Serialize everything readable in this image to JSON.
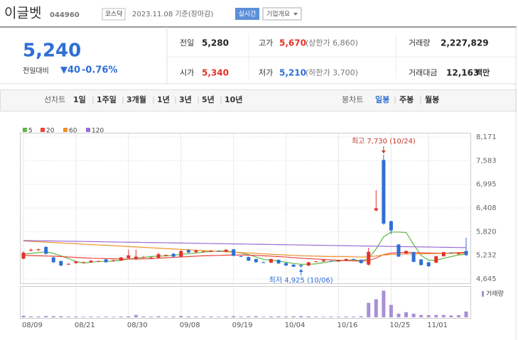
{
  "header": {
    "name": "이글벳",
    "code": "044960",
    "market": "코스닥",
    "date": "2023.11.08 기준(장마감)",
    "realtime": "실시간",
    "company": "기업개요"
  },
  "quote": {
    "price": "5,240",
    "change_label": "전일대비",
    "change": "▼40",
    "change_pct": "-0.76%",
    "table": [
      [
        {
          "label": "전일",
          "value": "5,280"
        },
        {
          "label": "고가",
          "value": "5,670",
          "note": "(상한가 6,860)"
        },
        {
          "label": "거래량",
          "value": "2,227,829"
        }
      ],
      [
        {
          "label": "시가",
          "value": "5,340"
        },
        {
          "label": "저가",
          "value": "5,210",
          "note": "(하한가 3,700)"
        },
        {
          "label": "거래대금",
          "value": "12,163",
          "unit": "백만"
        }
      ]
    ]
  },
  "tabs": {
    "line": {
      "label": "선차트",
      "items": [
        "1일",
        "1주일",
        "3개월",
        "1년",
        "3년",
        "5년",
        "10년"
      ]
    },
    "candle": {
      "label": "봉차트",
      "items": [
        "일봉",
        "주봉",
        "월봉"
      ],
      "active": 0
    }
  },
  "chart_data": {
    "type": "candlestick",
    "categories": [
      "08/09",
      null,
      null,
      null,
      null,
      null,
      null,
      "08/21",
      null,
      null,
      null,
      null,
      null,
      null,
      "08/30",
      null,
      null,
      null,
      null,
      null,
      null,
      "09/08",
      null,
      null,
      null,
      null,
      null,
      null,
      "09/19",
      null,
      null,
      null,
      null,
      null,
      null,
      "10/04",
      null,
      null,
      null,
      null,
      null,
      null,
      "10/16",
      null,
      null,
      null,
      null,
      null,
      null,
      "10/25",
      null,
      null,
      null,
      null,
      "11/01",
      null,
      null,
      null,
      null,
      null
    ],
    "open": [
      5150,
      5350,
      5360,
      5440,
      5180,
      5090,
      5010,
      5040,
      5050,
      5060,
      5080,
      5130,
      5100,
      5100,
      5160,
      5150,
      5180,
      5170,
      5170,
      5220,
      5270,
      5200,
      5360,
      5310,
      5320,
      5320,
      5340,
      5320,
      5380,
      5210,
      5190,
      5140,
      5060,
      5050,
      5120,
      5040,
      5000,
      4990,
      4980,
      5070,
      5080,
      5090,
      5080,
      5100,
      5140,
      5120,
      5000,
      6350,
      7600,
      6080,
      5500,
      5280,
      5310,
      5130,
      5060,
      5050,
      5210,
      5300,
      5260,
      5340
    ],
    "high": [
      5330,
      5400,
      5400,
      5460,
      5200,
      5100,
      5040,
      5090,
      5080,
      5110,
      5100,
      5140,
      5120,
      5190,
      5370,
      5370,
      5210,
      5200,
      5300,
      5250,
      5290,
      5360,
      5380,
      5370,
      5350,
      5360,
      5350,
      5390,
      5390,
      5230,
      5200,
      5150,
      5080,
      5150,
      5130,
      5050,
      5010,
      5000,
      5070,
      5090,
      5120,
      5100,
      5120,
      5150,
      5150,
      5130,
      5420,
      6850,
      7730,
      6090,
      5510,
      5350,
      5320,
      5140,
      5070,
      5220,
      5320,
      5310,
      5290,
      5670
    ],
    "low": [
      5130,
      5330,
      5340,
      5250,
      5040,
      4960,
      4990,
      5020,
      5040,
      5050,
      5060,
      5050,
      5080,
      5090,
      5140,
      5110,
      5170,
      5160,
      5160,
      5200,
      5190,
      5190,
      5290,
      5300,
      5310,
      5310,
      5320,
      5310,
      5210,
      5190,
      5090,
      5050,
      5040,
      5040,
      5020,
      4970,
      4940,
      4925,
      4960,
      5060,
      5070,
      5070,
      5070,
      5090,
      5120,
      5030,
      4980,
      6320,
      5990,
      5760,
      5190,
      5260,
      5060,
      4980,
      4950,
      5040,
      5200,
      5280,
      5250,
      5210
    ],
    "close": [
      5300,
      5370,
      5380,
      5270,
      5060,
      4980,
      5020,
      5080,
      5060,
      5100,
      5090,
      5060,
      5110,
      5180,
      5230,
      5200,
      5190,
      5180,
      5260,
      5240,
      5200,
      5340,
      5300,
      5350,
      5330,
      5350,
      5330,
      5370,
      5220,
      5200,
      5100,
      5060,
      5050,
      5140,
      5030,
      4980,
      4950,
      4960,
      5060,
      5080,
      5110,
      5080,
      5110,
      5140,
      5130,
      5040,
      5320,
      6400,
      6020,
      5850,
      5200,
      5340,
      5070,
      4990,
      4960,
      5210,
      5310,
      5290,
      5280,
      5240
    ],
    "up_color": "#e4312b",
    "down_color": "#2f6fd6",
    "moving_averages": [
      {
        "name": "5",
        "color": "#62b544",
        "values": [
          5260,
          5280,
          5300,
          5320,
          5280,
          5220,
          5150,
          5080,
          5040,
          5060,
          5080,
          5080,
          5090,
          5110,
          5140,
          5160,
          5180,
          5200,
          5210,
          5220,
          5230,
          5260,
          5270,
          5290,
          5310,
          5330,
          5340,
          5340,
          5320,
          5290,
          5250,
          5190,
          5130,
          5110,
          5090,
          5060,
          5030,
          5010,
          5010,
          5020,
          5050,
          5080,
          5090,
          5110,
          5120,
          5100,
          5150,
          5390,
          5690,
          5810,
          5810,
          5800,
          5500,
          5230,
          5110,
          5110,
          5160,
          5200,
          5240,
          5270
        ]
      },
      {
        "name": "20",
        "color": "#e8453c",
        "values": [
          5230,
          5225,
          5220,
          5215,
          5210,
          5200,
          5190,
          5180,
          5170,
          5160,
          5155,
          5150,
          5145,
          5140,
          5140,
          5140,
          5145,
          5150,
          5160,
          5170,
          5180,
          5190,
          5200,
          5210,
          5220,
          5225,
          5230,
          5235,
          5240,
          5240,
          5235,
          5230,
          5220,
          5210,
          5200,
          5190,
          5175,
          5160,
          5150,
          5140,
          5130,
          5120,
          5110,
          5100,
          5095,
          5090,
          5100,
          5165,
          5250,
          5290,
          5300,
          5305,
          5300,
          5295,
          5290,
          5285,
          5280,
          5290,
          5300,
          5310
        ]
      },
      {
        "name": "60",
        "color": "#f0912a",
        "values": [
          5590,
          5580,
          5570,
          5560,
          5550,
          5540,
          5530,
          5520,
          5510,
          5500,
          5490,
          5480,
          5470,
          5460,
          5450,
          5440,
          5430,
          5420,
          5410,
          5400,
          5390,
          5380,
          5370,
          5360,
          5350,
          5340,
          5330,
          5320,
          5310,
          5300,
          5290,
          5280,
          5270,
          5260,
          5250,
          5240,
          5230,
          5220,
          5215,
          5210,
          5205,
          5200,
          5200,
          5200,
          5195,
          5190,
          5195,
          5215,
          5240,
          5255,
          5260,
          5265,
          5268,
          5270,
          5272,
          5275,
          5278,
          5280,
          5283,
          5286
        ]
      },
      {
        "name": "120",
        "color": "#9b6cd6",
        "values": [
          5600,
          5597,
          5594,
          5591,
          5588,
          5585,
          5582,
          5579,
          5576,
          5573,
          5570,
          5567,
          5564,
          5561,
          5558,
          5555,
          5552,
          5549,
          5546,
          5543,
          5540,
          5537,
          5534,
          5531,
          5528,
          5525,
          5522,
          5519,
          5516,
          5513,
          5510,
          5507,
          5504,
          5501,
          5498,
          5495,
          5492,
          5489,
          5486,
          5483,
          5480,
          5477,
          5474,
          5471,
          5468,
          5465,
          5462,
          5459,
          5456,
          5453,
          5450,
          5447,
          5444,
          5441,
          5438,
          5435,
          5432,
          5429,
          5426,
          5423
        ]
      }
    ],
    "volume": {
      "name": "거래량",
      "color": "#a98fd6",
      "ylim": [
        0,
        11000000
      ],
      "values": [
        600000,
        350000,
        300000,
        500000,
        450000,
        400000,
        250000,
        300000,
        200000,
        250000,
        200000,
        250000,
        200000,
        300000,
        350000,
        900000,
        300000,
        250000,
        400000,
        250000,
        300000,
        500000,
        350000,
        300000,
        250000,
        300000,
        200000,
        300000,
        450000,
        250000,
        350000,
        400000,
        200000,
        300000,
        350000,
        300000,
        400000,
        450000,
        350000,
        250000,
        200000,
        250000,
        200000,
        300000,
        250000,
        400000,
        5600000,
        7000000,
        10300000,
        4800000,
        1400000,
        2000000,
        1400000,
        900000,
        800000,
        900000,
        900000,
        700000,
        800000,
        2227829
      ]
    },
    "ylim": [
      4645,
      8171
    ],
    "yticks": [
      {
        "value": 4645,
        "label": "4,645"
      },
      {
        "value": 5232,
        "label": "5,232"
      },
      {
        "value": 5820,
        "label": "5,820"
      },
      {
        "value": 6408,
        "label": "6,408"
      },
      {
        "value": 6995,
        "label": "6,995"
      },
      {
        "value": 7583,
        "label": "7,583"
      },
      {
        "value": 8171,
        "label": "8,171"
      }
    ],
    "high_label": "최고 7,730 (10/24)",
    "low_label": "최저 4,925 (10/06)",
    "high_color": "#c0392b",
    "low_color": "#2f6fd6"
  }
}
